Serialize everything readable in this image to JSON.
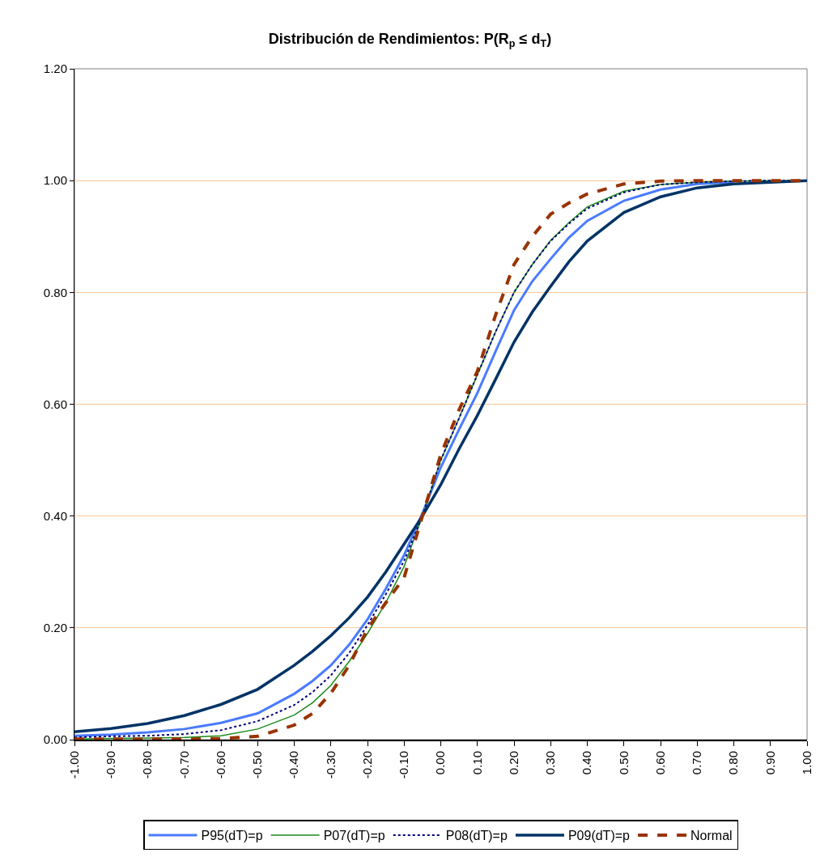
{
  "chart_data": {
    "type": "line",
    "title": "Distribución de Rendimientos: P(R$_{p}$ ≤ d$_{T}$)",
    "x": [
      -1,
      -0.9,
      -0.8,
      -0.7,
      -0.6,
      -0.5,
      -0.4,
      -0.35,
      -0.3,
      -0.25,
      -0.2,
      -0.15,
      -0.1,
      -0.05,
      0,
      0.05,
      0.1,
      0.15,
      0.2,
      0.25,
      0.3,
      0.35,
      0.4,
      0.5,
      0.6,
      0.7,
      0.8,
      0.9,
      1
    ],
    "series": [
      {
        "name": "P95(dT)=p",
        "color": "#4a7bff",
        "line_style": "solid",
        "values": [
          0.007,
          0.009,
          0.013,
          0.019,
          0.03,
          0.047,
          0.082,
          0.105,
          0.133,
          0.17,
          0.215,
          0.27,
          0.33,
          0.405,
          0.487,
          0.555,
          0.62,
          0.695,
          0.768,
          0.82,
          0.86,
          0.898,
          0.928,
          0.964,
          0.984,
          0.994,
          0.997,
          null,
          null
        ]
      },
      {
        "name": "P07(dT)=p",
        "color": "#1a8a1a",
        "line_style": "solid",
        "values": [
          0.001,
          0.002,
          0.003,
          0.004,
          0.007,
          0.019,
          0.044,
          0.066,
          0.097,
          0.14,
          0.19,
          0.245,
          0.31,
          0.4,
          0.5,
          0.575,
          0.653,
          0.73,
          0.8,
          0.85,
          0.893,
          0.925,
          0.953,
          0.981,
          0.993,
          0.997,
          0.999,
          1.0,
          1.0
        ]
      },
      {
        "name": "P08(dT)=p",
        "color": "#000080",
        "line_style": "dotted",
        "values": [
          0.004,
          0.006,
          0.007,
          0.01,
          0.017,
          0.033,
          0.062,
          0.085,
          0.115,
          0.155,
          0.205,
          0.26,
          0.32,
          0.4,
          0.5,
          0.575,
          0.653,
          0.73,
          0.8,
          0.85,
          0.892,
          0.923,
          0.95,
          0.979,
          0.993,
          0.997,
          0.999,
          1.0,
          1.0
        ]
      },
      {
        "name": "P09(dT)=p",
        "color": "#003366",
        "line_style": "solid",
        "values": [
          0.014,
          0.02,
          0.029,
          0.043,
          0.063,
          0.09,
          0.133,
          0.158,
          0.186,
          0.218,
          0.255,
          0.3,
          0.35,
          0.4,
          0.456,
          0.52,
          0.58,
          0.645,
          0.711,
          0.765,
          0.811,
          0.855,
          0.892,
          0.943,
          0.971,
          0.987,
          0.994,
          0.997,
          1.0
        ]
      },
      {
        "name": "Normal",
        "color": "#993300",
        "line_style": "dashed",
        "values": [
          0.001,
          0.001,
          0.001,
          0.001,
          0.002,
          0.006,
          0.026,
          0.047,
          0.083,
          0.133,
          0.198,
          0.245,
          0.29,
          0.4,
          0.51,
          0.59,
          0.659,
          0.76,
          0.85,
          0.9,
          0.94,
          0.96,
          0.976,
          0.994,
          0.999,
          1.0,
          1.0,
          1.0,
          1.0
        ]
      }
    ],
    "xlim": [
      -1,
      1
    ],
    "xticks": [
      {
        "value": -1,
        "label": "-1.00"
      },
      {
        "value": -0.9,
        "label": "-0.90"
      },
      {
        "value": -0.8,
        "label": "-0.80"
      },
      {
        "value": -0.7,
        "label": "-0.70"
      },
      {
        "value": -0.6,
        "label": "-0.60"
      },
      {
        "value": -0.5,
        "label": "-0.50"
      },
      {
        "value": -0.4,
        "label": "-0.40"
      },
      {
        "value": -0.3,
        "label": "-0.30"
      },
      {
        "value": -0.2,
        "label": "-0.20"
      },
      {
        "value": -0.1,
        "label": "-0.10"
      },
      {
        "value": 0,
        "label": "0.00"
      },
      {
        "value": 0.1,
        "label": "0.10"
      },
      {
        "value": 0.2,
        "label": "0.20"
      },
      {
        "value": 0.3,
        "label": "0.30"
      },
      {
        "value": 0.4,
        "label": "0.40"
      },
      {
        "value": 0.5,
        "label": "0.50"
      },
      {
        "value": 0.6,
        "label": "0.60"
      },
      {
        "value": 0.7,
        "label": "0.70"
      },
      {
        "value": 0.8,
        "label": "0.80"
      },
      {
        "value": 0.9,
        "label": "0.90"
      },
      {
        "value": 1,
        "label": "1.00"
      }
    ],
    "ylim": [
      0,
      1.2
    ],
    "yticks": [
      {
        "value": 0,
        "label": "0.00"
      },
      {
        "value": 0.2,
        "label": "0.20"
      },
      {
        "value": 0.4,
        "label": "0.40"
      },
      {
        "value": 0.6,
        "label": "0.60"
      },
      {
        "value": 0.8,
        "label": "0.80"
      },
      {
        "value": 1.0,
        "label": "1.00"
      },
      {
        "value": 1.2,
        "label": "1.20"
      }
    ],
    "grid": "y",
    "legend": "bottom",
    "marker": "none"
  }
}
